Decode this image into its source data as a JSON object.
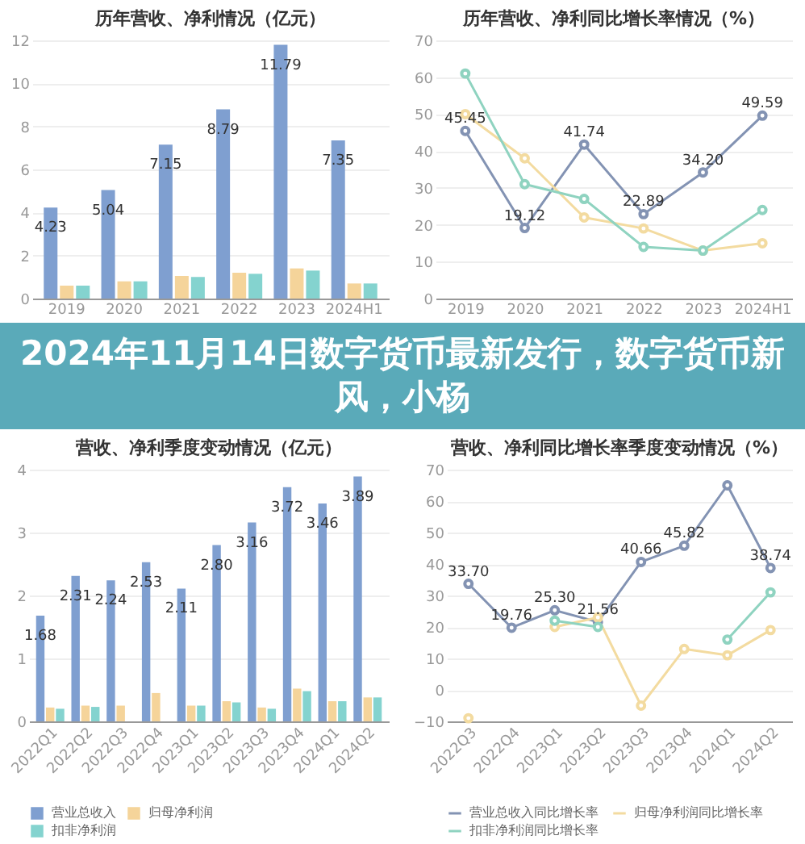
{
  "chart_data": [
    {
      "type": "bar",
      "title": "历年营收、净利情况（亿元）",
      "categories": [
        "2019",
        "2020",
        "2021",
        "2022",
        "2023",
        "2024H1"
      ],
      "ylim": [
        0,
        12
      ],
      "yticks": [
        0,
        2,
        4,
        6,
        8,
        10,
        12
      ],
      "grid": "y",
      "series": [
        {
          "color": "#7f9fd0",
          "values": [
            4.23,
            5.04,
            7.15,
            8.79,
            11.79,
            7.35
          ],
          "value_labels": [
            "4.23",
            "5.04",
            "7.15",
            "8.79",
            "11.79",
            "7.35"
          ]
        },
        {
          "color": "#f5d49a",
          "values": [
            0.6,
            0.8,
            1.05,
            1.2,
            1.4,
            0.7
          ]
        },
        {
          "color": "#84d3cf",
          "values": [
            0.6,
            0.8,
            1.0,
            1.15,
            1.3,
            0.7
          ]
        }
      ]
    },
    {
      "type": "line",
      "title": "历年营收、净利同比增长率情况（%）",
      "categories": [
        "2019",
        "2020",
        "2021",
        "2022",
        "2023",
        "2024H1"
      ],
      "ylim": [
        0,
        70
      ],
      "yticks": [
        0,
        10,
        20,
        30,
        40,
        50,
        60,
        70
      ],
      "grid": "y",
      "marker": "circle",
      "series": [
        {
          "color": "#8393b3",
          "values": [
            45.45,
            19.12,
            41.74,
            22.89,
            34.2,
            49.59
          ],
          "value_labels": [
            "45.45",
            "19.12",
            "41.74",
            "22.89",
            "34.20",
            "49.59"
          ]
        },
        {
          "color": "#f3dba0",
          "values": [
            50,
            38,
            22,
            19,
            13,
            15
          ]
        },
        {
          "color": "#8fd3c0",
          "values": [
            61,
            31,
            27,
            14,
            13,
            24
          ]
        }
      ]
    },
    {
      "type": "other",
      "title": "2024年11月14日数字货币最新发行，数字货币新风，小杨"
    },
    {
      "type": "bar",
      "title": "营收、净利季度变动情况（亿元）",
      "categories": [
        "2022Q1",
        "2022Q2",
        "2022Q3",
        "2022Q4",
        "2023Q1",
        "2023Q2",
        "2023Q3",
        "2023Q4",
        "2024Q1",
        "2024Q2"
      ],
      "ylim": [
        0,
        4
      ],
      "yticks": [
        0,
        1,
        2,
        3,
        4
      ],
      "grid": "y",
      "legend": "bottom",
      "series": [
        {
          "name": "营业总收入",
          "color": "#7f9fd0",
          "values": [
            1.68,
            2.31,
            2.24,
            2.53,
            2.11,
            2.8,
            3.16,
            3.72,
            3.46,
            3.89
          ],
          "value_labels": [
            "1.68",
            "2.31",
            "2.24",
            "2.53",
            "2.11",
            "2.80",
            "3.16",
            "3.72",
            "3.46",
            "3.89"
          ]
        },
        {
          "name": "归母净利润",
          "color": "#f5d49a",
          "values": [
            0.22,
            0.25,
            0.25,
            0.45,
            0.25,
            0.32,
            0.22,
            0.52,
            0.32,
            0.38
          ]
        },
        {
          "name": "扣非净利润",
          "color": "#84d3cf",
          "values": [
            0.2,
            0.23,
            null,
            null,
            0.25,
            0.3,
            0.2,
            0.48,
            0.32,
            0.38
          ]
        }
      ]
    },
    {
      "type": "line",
      "title": "营收、净利同比增长率季度变动情况（%）",
      "categories": [
        "2022Q3",
        "2022Q4",
        "2023Q1",
        "2023Q2",
        "2023Q3",
        "2023Q4",
        "2024Q1",
        "2024Q2"
      ],
      "ylim": [
        -10,
        70
      ],
      "yticks": [
        -10,
        0,
        10,
        20,
        30,
        40,
        50,
        60,
        70
      ],
      "grid": "y",
      "marker": "circle",
      "legend": "bottom",
      "series": [
        {
          "name": "营业总收入同比增长率",
          "color": "#8393b3",
          "values": [
            33.7,
            19.76,
            25.3,
            21.56,
            40.66,
            45.82,
            65,
            38.74
          ],
          "value_labels": [
            "33.70",
            "19.76",
            "25.30",
            "21.56",
            "40.66",
            "45.82",
            null,
            "38.74"
          ]
        },
        {
          "name": "归母净利润同比增长率",
          "color": "#f3dba0",
          "values": [
            -9,
            null,
            20,
            23,
            -5,
            13,
            11,
            19
          ]
        },
        {
          "name": "扣非净利润同比增长率",
          "color": "#8fd3c0",
          "values": [
            null,
            null,
            22,
            20,
            null,
            null,
            16,
            31
          ]
        }
      ]
    }
  ]
}
